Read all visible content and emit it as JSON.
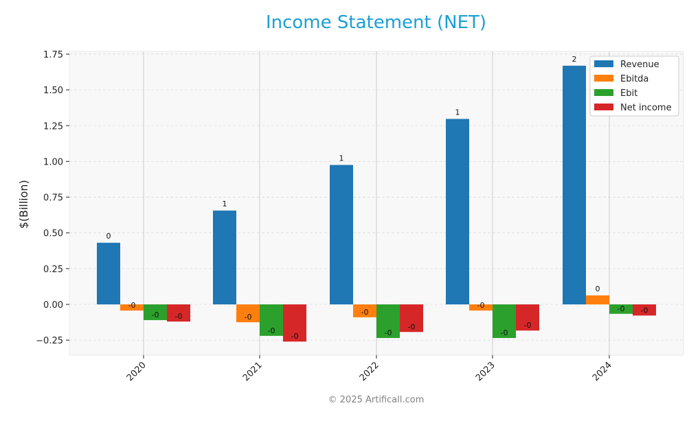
{
  "title": "Income Statement (NET)",
  "footer": "© 2025 Artificall.com",
  "chart_data": {
    "type": "bar",
    "title": "Income Statement (NET)",
    "xlabel": "",
    "ylabel": "$(Billion)",
    "ylim": [
      -0.35,
      1.77
    ],
    "yticks": [
      -0.25,
      0.0,
      0.25,
      0.5,
      0.75,
      1.0,
      1.25,
      1.5,
      1.75
    ],
    "ytick_labels": [
      "−0.25",
      "0.00",
      "0.25",
      "0.50",
      "0.75",
      "1.00",
      "1.25",
      "1.50",
      "1.75"
    ],
    "categories": [
      "2020",
      "2021",
      "2022",
      "2023",
      "2024"
    ],
    "grid": true,
    "legend_position": "upper right",
    "series": [
      {
        "name": "Revenue",
        "color": "#1f77b4",
        "values": [
          0.431,
          0.656,
          0.975,
          1.297,
          1.669
        ],
        "labels": [
          "0",
          "1",
          "1",
          "1",
          "2"
        ]
      },
      {
        "name": "Ebitda",
        "color": "#ff7f0e",
        "values": [
          -0.043,
          -0.125,
          -0.09,
          -0.043,
          0.063
        ],
        "labels": [
          "-0",
          "-0",
          "-0",
          "-0",
          "0"
        ]
      },
      {
        "name": "Ebit",
        "color": "#2ca02c",
        "values": [
          -0.11,
          -0.22,
          -0.235,
          -0.235,
          -0.066
        ],
        "labels": [
          "-0",
          "-0",
          "-0",
          "-0",
          "-0"
        ]
      },
      {
        "name": "Net income",
        "color": "#d62728",
        "values": [
          -0.12,
          -0.26,
          -0.193,
          -0.183,
          -0.078
        ],
        "labels": [
          "-0",
          "-0",
          "-0",
          "-0",
          "-0"
        ]
      }
    ]
  }
}
